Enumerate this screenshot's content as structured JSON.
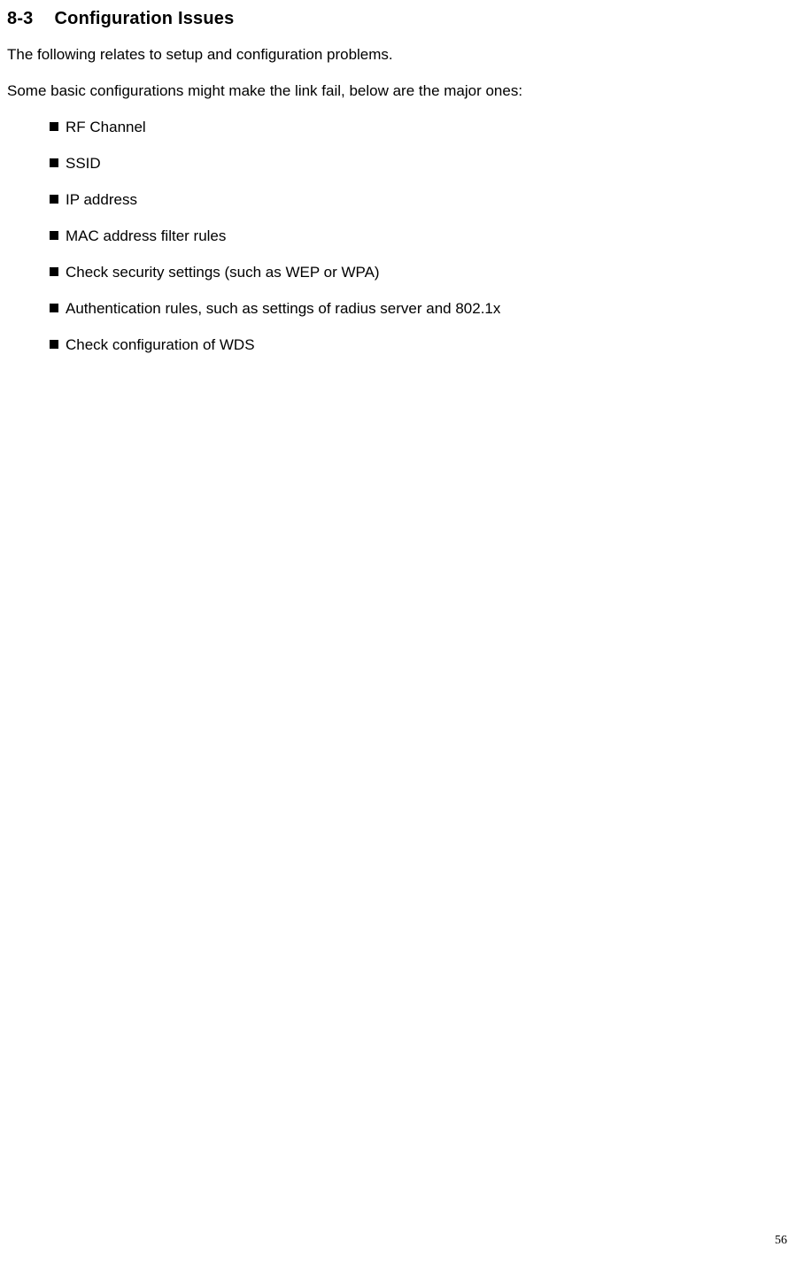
{
  "section": {
    "number": "8-3",
    "title": "Configuration Issues"
  },
  "paragraphs": {
    "p1": "The following relates to setup and configuration problems.",
    "p2": "Some basic configurations might make the link fail, below are the major ones:"
  },
  "bullets": {
    "items": [
      {
        "text": "RF Channel"
      },
      {
        "text": "SSID"
      },
      {
        "text": "IP address"
      },
      {
        "text": "MAC address filter rules"
      },
      {
        "text": "Check security settings (such as WEP or WPA)"
      },
      {
        "text": "Authentication rules, such as settings of radius server and 802.1x"
      },
      {
        "text": "Check configuration of WDS"
      }
    ]
  },
  "page_number": "56",
  "styling": {
    "background_color": "#ffffff",
    "text_color": "#000000",
    "heading_fontsize": 20,
    "body_fontsize": 17,
    "page_number_fontsize": 14,
    "bullet_marker_size": 10,
    "bullet_marker_color": "#000000",
    "bullet_indent": 48,
    "paragraph_spacing": 18
  }
}
